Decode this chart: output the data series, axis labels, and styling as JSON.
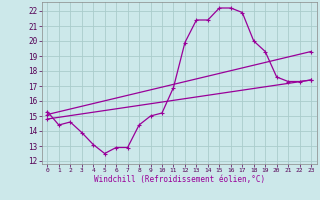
{
  "xlabel": "Windchill (Refroidissement éolien,°C)",
  "bg_color": "#cce8ea",
  "grid_color": "#aacccc",
  "line_color": "#990099",
  "x_ticks": [
    0,
    1,
    2,
    3,
    4,
    5,
    6,
    7,
    8,
    9,
    10,
    11,
    12,
    13,
    14,
    15,
    16,
    17,
    18,
    19,
    20,
    21,
    22,
    23
  ],
  "y_ticks": [
    12,
    13,
    14,
    15,
    16,
    17,
    18,
    19,
    20,
    21,
    22
  ],
  "xlim": [
    -0.5,
    23.5
  ],
  "ylim": [
    11.8,
    22.6
  ],
  "curve1_x": [
    0,
    1,
    2,
    3,
    4,
    5,
    6,
    7,
    8,
    9,
    10,
    11,
    12,
    13,
    14,
    15,
    16,
    17,
    18,
    19,
    20,
    21,
    22,
    23
  ],
  "curve1_y": [
    15.3,
    14.4,
    14.6,
    13.9,
    13.1,
    12.5,
    12.9,
    12.9,
    14.4,
    15.0,
    15.2,
    16.9,
    19.9,
    21.4,
    21.4,
    22.2,
    22.2,
    21.9,
    20.0,
    19.3,
    17.6,
    17.3,
    17.3,
    17.4
  ],
  "line2_x": [
    0,
    23
  ],
  "line2_y": [
    15.1,
    19.3
  ],
  "line3_x": [
    0,
    23
  ],
  "line3_y": [
    14.8,
    17.4
  ]
}
